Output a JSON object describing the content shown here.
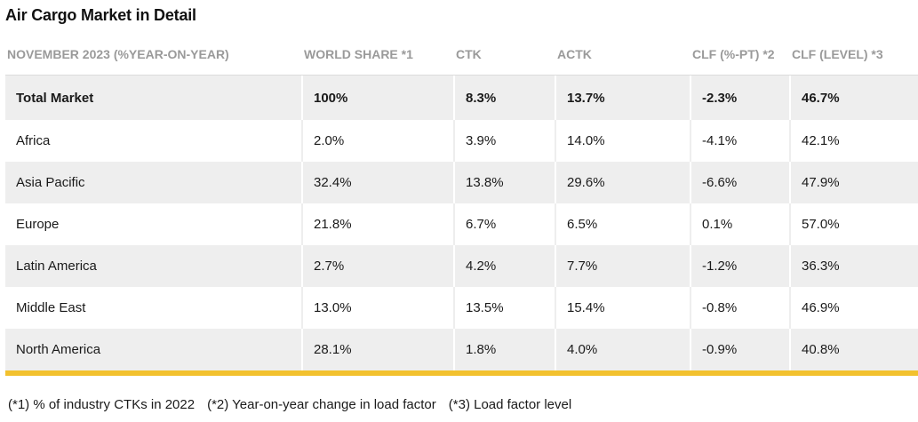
{
  "title": "Air Cargo Market in Detail",
  "columns": [
    "NOVEMBER 2023 (%YEAR-ON-YEAR)",
    "WORLD SHARE *1",
    "CTK",
    "ACTK",
    "CLF (%-PT) *2",
    "CLF (LEVEL) *3"
  ],
  "rows": [
    {
      "region": "Total Market",
      "world_share": "100%",
      "ctk": "8.3%",
      "actk": "13.7%",
      "clf_pt": "-2.3%",
      "clf_level": "46.7%"
    },
    {
      "region": "Africa",
      "world_share": "2.0%",
      "ctk": "3.9%",
      "actk": "14.0%",
      "clf_pt": "-4.1%",
      "clf_level": "42.1%"
    },
    {
      "region": "Asia Pacific",
      "world_share": "32.4%",
      "ctk": "13.8%",
      "actk": "29.6%",
      "clf_pt": "-6.6%",
      "clf_level": "47.9%"
    },
    {
      "region": "Europe",
      "world_share": "21.8%",
      "ctk": "6.7%",
      "actk": "6.5%",
      "clf_pt": "0.1%",
      "clf_level": "57.0%"
    },
    {
      "region": "Latin America",
      "world_share": "2.7%",
      "ctk": "4.2%",
      "actk": "7.7%",
      "clf_pt": "-1.2%",
      "clf_level": "36.3%"
    },
    {
      "region": "Middle East",
      "world_share": "13.0%",
      "ctk": "13.5%",
      "actk": "15.4%",
      "clf_pt": "-0.8%",
      "clf_level": "46.9%"
    },
    {
      "region": "North America",
      "world_share": "28.1%",
      "ctk": "1.8%",
      "actk": "4.0%",
      "clf_pt": "-0.9%",
      "clf_level": "40.8%"
    }
  ],
  "footnotes": [
    "(*1) % of industry CTKs in 2022",
    "(*2) Year-on-year change in load factor",
    "(*3) Load factor level"
  ],
  "colors": {
    "accent_rule": "#f2c12e",
    "row_shade": "#eeeeee",
    "header_text": "#9a9a9a"
  }
}
